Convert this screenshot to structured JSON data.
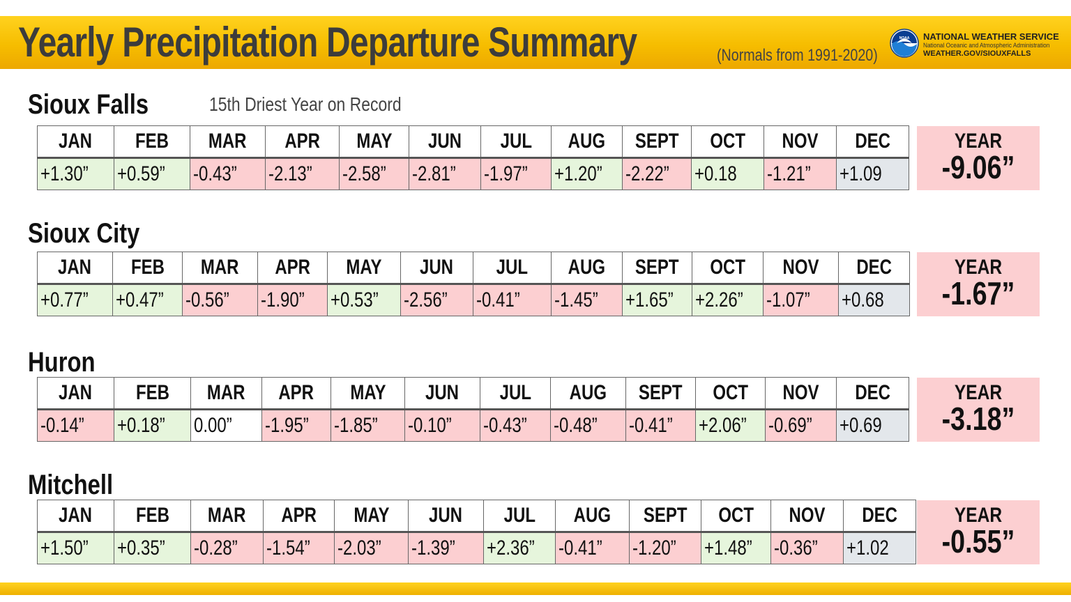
{
  "header": {
    "title": "Yearly Precipitation Departure Summary",
    "subtitle": "(Normals from 1991-2020)",
    "agency": "NATIONAL WEATHER SERVICE",
    "agency_sub": "National Oceanic and Atmospheric Administration",
    "agency_url": "WEATHER.GOV/SIOUXFALLS",
    "logo_text": "NOAA"
  },
  "colors": {
    "header": "#f6bd00",
    "positive": "#e6f5dc",
    "negative": "#fccfd1",
    "neutral": "#ffffff",
    "december": "#e3e7eb",
    "year_box": "#fccfd1"
  },
  "stations": [
    {
      "name": "Sioux Falls",
      "note": "15th Driest Year on Record",
      "months": [
        "JAN",
        "FEB",
        "MAR",
        "APR",
        "MAY",
        "JUN",
        "JUL",
        "AUG",
        "SEPT",
        "OCT",
        "NOV",
        "DEC"
      ],
      "values": [
        "+1.30”",
        "+0.59”",
        "-0.43”",
        "-2.13”",
        "-2.58”",
        "-2.81”",
        "-1.97”",
        "+1.20”",
        "-2.22”",
        "+0.18",
        "-1.21”",
        "+1.09"
      ],
      "year_label": "YEAR",
      "year_value": "-9.06”"
    },
    {
      "name": "Sioux City",
      "note": "",
      "months": [
        "JAN",
        "FEB",
        "MAR",
        "APR",
        "MAY",
        "JUN",
        "JUL",
        "AUG",
        "SEPT",
        "OCT",
        "NOV",
        "DEC"
      ],
      "values": [
        "+0.77”",
        "+0.47”",
        "-0.56”",
        "-1.90”",
        "+0.53”",
        "-2.56”",
        "-0.41”",
        "-1.45”",
        "+1.65”",
        "+2.26”",
        "-1.07”",
        "+0.68"
      ],
      "year_label": "YEAR",
      "year_value": "-1.67”"
    },
    {
      "name": "Huron",
      "note": "",
      "months": [
        "JAN",
        "FEB",
        "MAR",
        "APR",
        "MAY",
        "JUN",
        "JUL",
        "AUG",
        "SEPT",
        "OCT",
        "NOV",
        "DEC"
      ],
      "values": [
        "-0.14”",
        "+0.18”",
        "0.00”",
        "-1.95”",
        "-1.85”",
        "-0.10”",
        "-0.43”",
        "-0.48”",
        "-0.41”",
        "+2.06”",
        "-0.69”",
        "+0.69"
      ],
      "year_label": "YEAR",
      "year_value": "-3.18”"
    },
    {
      "name": "Mitchell",
      "note": "",
      "months": [
        "JAN",
        "FEB",
        "MAR",
        "APR",
        "MAY",
        "JUN",
        "JUL",
        "AUG",
        "SEPT",
        "OCT",
        "NOV",
        "DEC"
      ],
      "values": [
        "+1.50”",
        "+0.35”",
        "-0.28”",
        "-1.54”",
        "-2.03”",
        "-1.39”",
        "+2.36”",
        "-0.41”",
        "-1.20”",
        "+1.48”",
        "-0.36”",
        "+1.02"
      ],
      "year_label": "YEAR",
      "year_value": "-0.55”"
    }
  ]
}
